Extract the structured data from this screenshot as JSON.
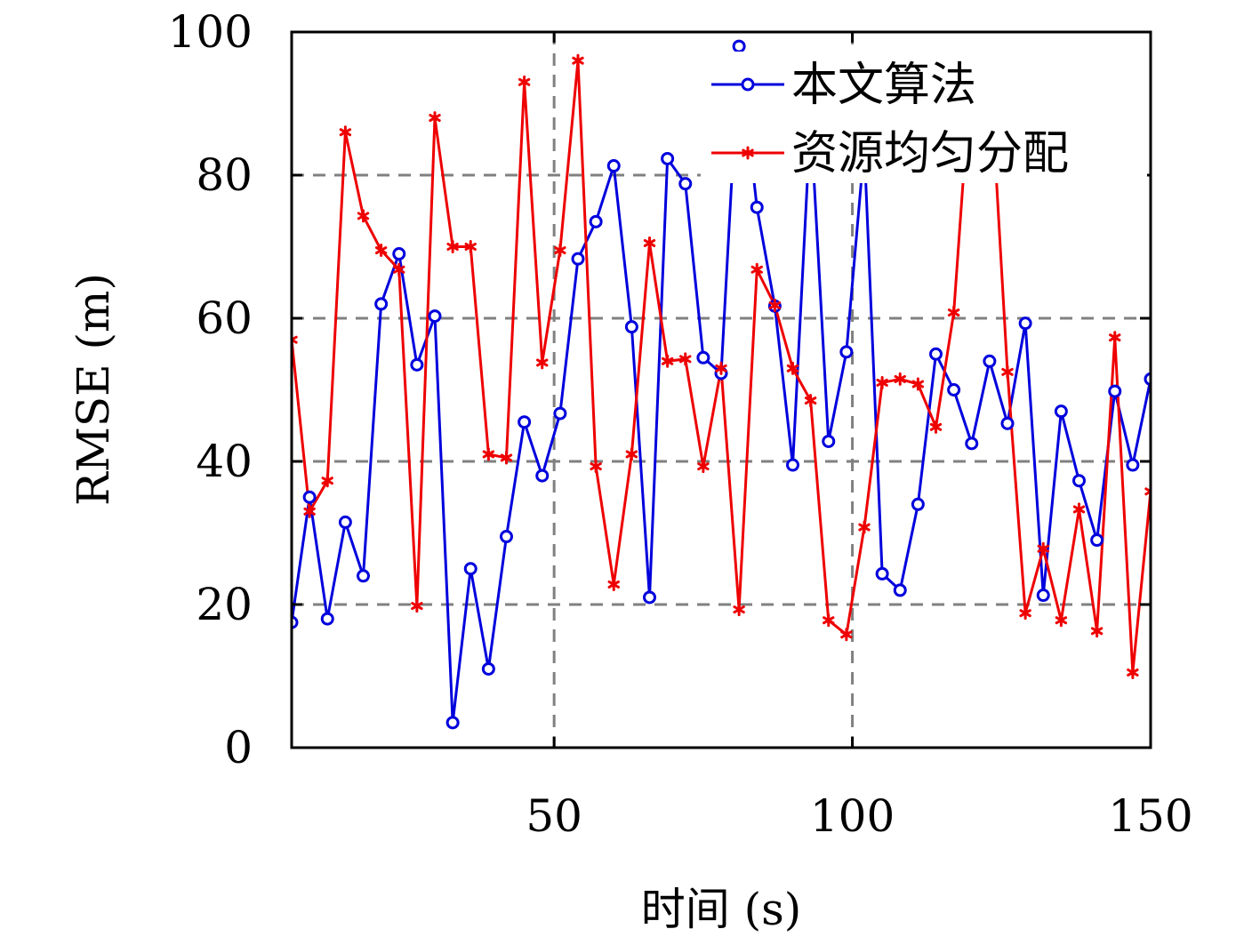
{
  "chart_data": {
    "type": "line",
    "xlabel": "时间 (s)",
    "ylabel": "RMSE (m)",
    "xlim": [
      6,
      150
    ],
    "ylim": [
      0,
      100
    ],
    "xticks": [
      50,
      100,
      150
    ],
    "yticks": [
      0,
      20,
      40,
      60,
      80,
      100
    ],
    "grid": "dashed, at ticks",
    "legend_position": "top-right",
    "x": [
      6,
      9,
      12,
      15,
      18,
      21,
      24,
      27,
      30,
      33,
      36,
      39,
      42,
      45,
      48,
      51,
      54,
      57,
      60,
      63,
      66,
      69,
      72,
      75,
      78,
      81,
      84,
      87,
      90,
      93,
      96,
      99,
      102,
      105,
      108,
      111,
      114,
      117,
      120,
      123,
      126,
      129,
      132,
      135,
      138,
      141,
      144,
      147,
      150
    ],
    "series": [
      {
        "name": "本文算法",
        "color": "#0000dd",
        "marker": "circle",
        "values": [
          17.5,
          35,
          18,
          31.5,
          24,
          62,
          69,
          53.5,
          60.3,
          3.5,
          25,
          11,
          29.5,
          45.5,
          38,
          46.7,
          68.3,
          73.5,
          81.3,
          58.8,
          21,
          82.3,
          78.8,
          54.5,
          52.3,
          98,
          75.5,
          61.7,
          39.5,
          88,
          42.8,
          55.3,
          84,
          24.3,
          22,
          34,
          55,
          50,
          42.5,
          54,
          45.3,
          59.3,
          21.3,
          47,
          37.3,
          29,
          49.8,
          39.5,
          51.5
        ]
      },
      {
        "name": "资源均匀分配",
        "color": "#ee0000",
        "marker": "asterisk",
        "values": [
          57,
          33,
          37.3,
          86,
          74.3,
          69.5,
          66.8,
          19.8,
          88,
          70,
          70,
          41,
          40.5,
          93,
          53.8,
          69.5,
          96,
          39.3,
          22.8,
          41,
          70.5,
          54,
          54.3,
          39.3,
          53,
          19.3,
          66.8,
          61.8,
          53,
          48.5,
          17.8,
          15.8,
          30.8,
          51,
          51.5,
          50.8,
          44.8,
          60.8,
          96,
          96,
          52.5,
          18.8,
          27.8,
          17.8,
          33.3,
          16.3,
          57.3,
          10.5,
          35.8
        ]
      }
    ]
  }
}
